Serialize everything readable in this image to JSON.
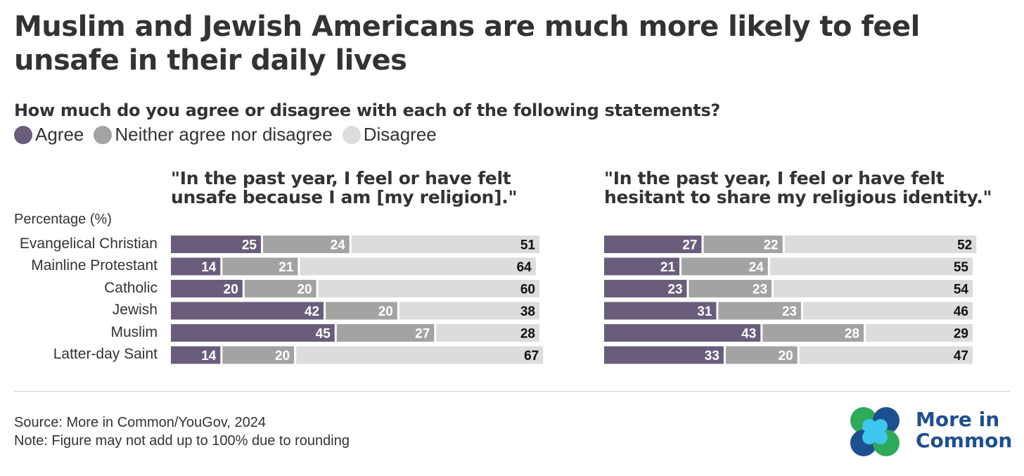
{
  "title": "Muslim and Jewish Americans are much more likely to feel unsafe in their daily lives",
  "subtitle": "How much do you agree or disagree with each of the following statements?",
  "legend": [
    {
      "label": "Agree",
      "color": "#6a5d7b"
    },
    {
      "label": "Neither agree nor disagree",
      "color": "#a3a3a3"
    },
    {
      "label": "Disagree",
      "color": "#dcdcdc"
    }
  ],
  "y_axis_label": "Percentage (%)",
  "source": "Source: More in Common/YouGov, 2024",
  "note": "Note: Figure may not add up to 100% due to rounding",
  "logo": {
    "line1": "More in",
    "line2": "Common"
  },
  "chart_data": [
    {
      "type": "bar",
      "stacked": true,
      "orientation": "horizontal",
      "title": "\"In the past year, I feel or have felt unsafe because I am [my religion].\"",
      "categories": [
        "Evangelical Christian",
        "Mainline Protestant",
        "Catholic",
        "Jewish",
        "Muslim",
        "Latter-day Saint"
      ],
      "series": [
        {
          "name": "Agree",
          "values": [
            25,
            14,
            20,
            42,
            45,
            14
          ]
        },
        {
          "name": "Neither agree nor disagree",
          "values": [
            24,
            21,
            20,
            20,
            27,
            20
          ]
        },
        {
          "name": "Disagree",
          "values": [
            51,
            64,
            60,
            38,
            28,
            67
          ]
        }
      ]
    },
    {
      "type": "bar",
      "stacked": true,
      "orientation": "horizontal",
      "title": "\"In the past year, I feel or have felt hesitant to share my religious identity.\"",
      "categories": [
        "Evangelical Christian",
        "Mainline Protestant",
        "Catholic",
        "Jewish",
        "Muslim",
        "Latter-day Saint"
      ],
      "series": [
        {
          "name": "Agree",
          "values": [
            27,
            21,
            23,
            31,
            43,
            33
          ]
        },
        {
          "name": "Neither agree nor disagree",
          "values": [
            22,
            24,
            23,
            23,
            28,
            20
          ]
        },
        {
          "name": "Disagree",
          "values": [
            52,
            55,
            54,
            46,
            29,
            47
          ]
        }
      ]
    }
  ]
}
